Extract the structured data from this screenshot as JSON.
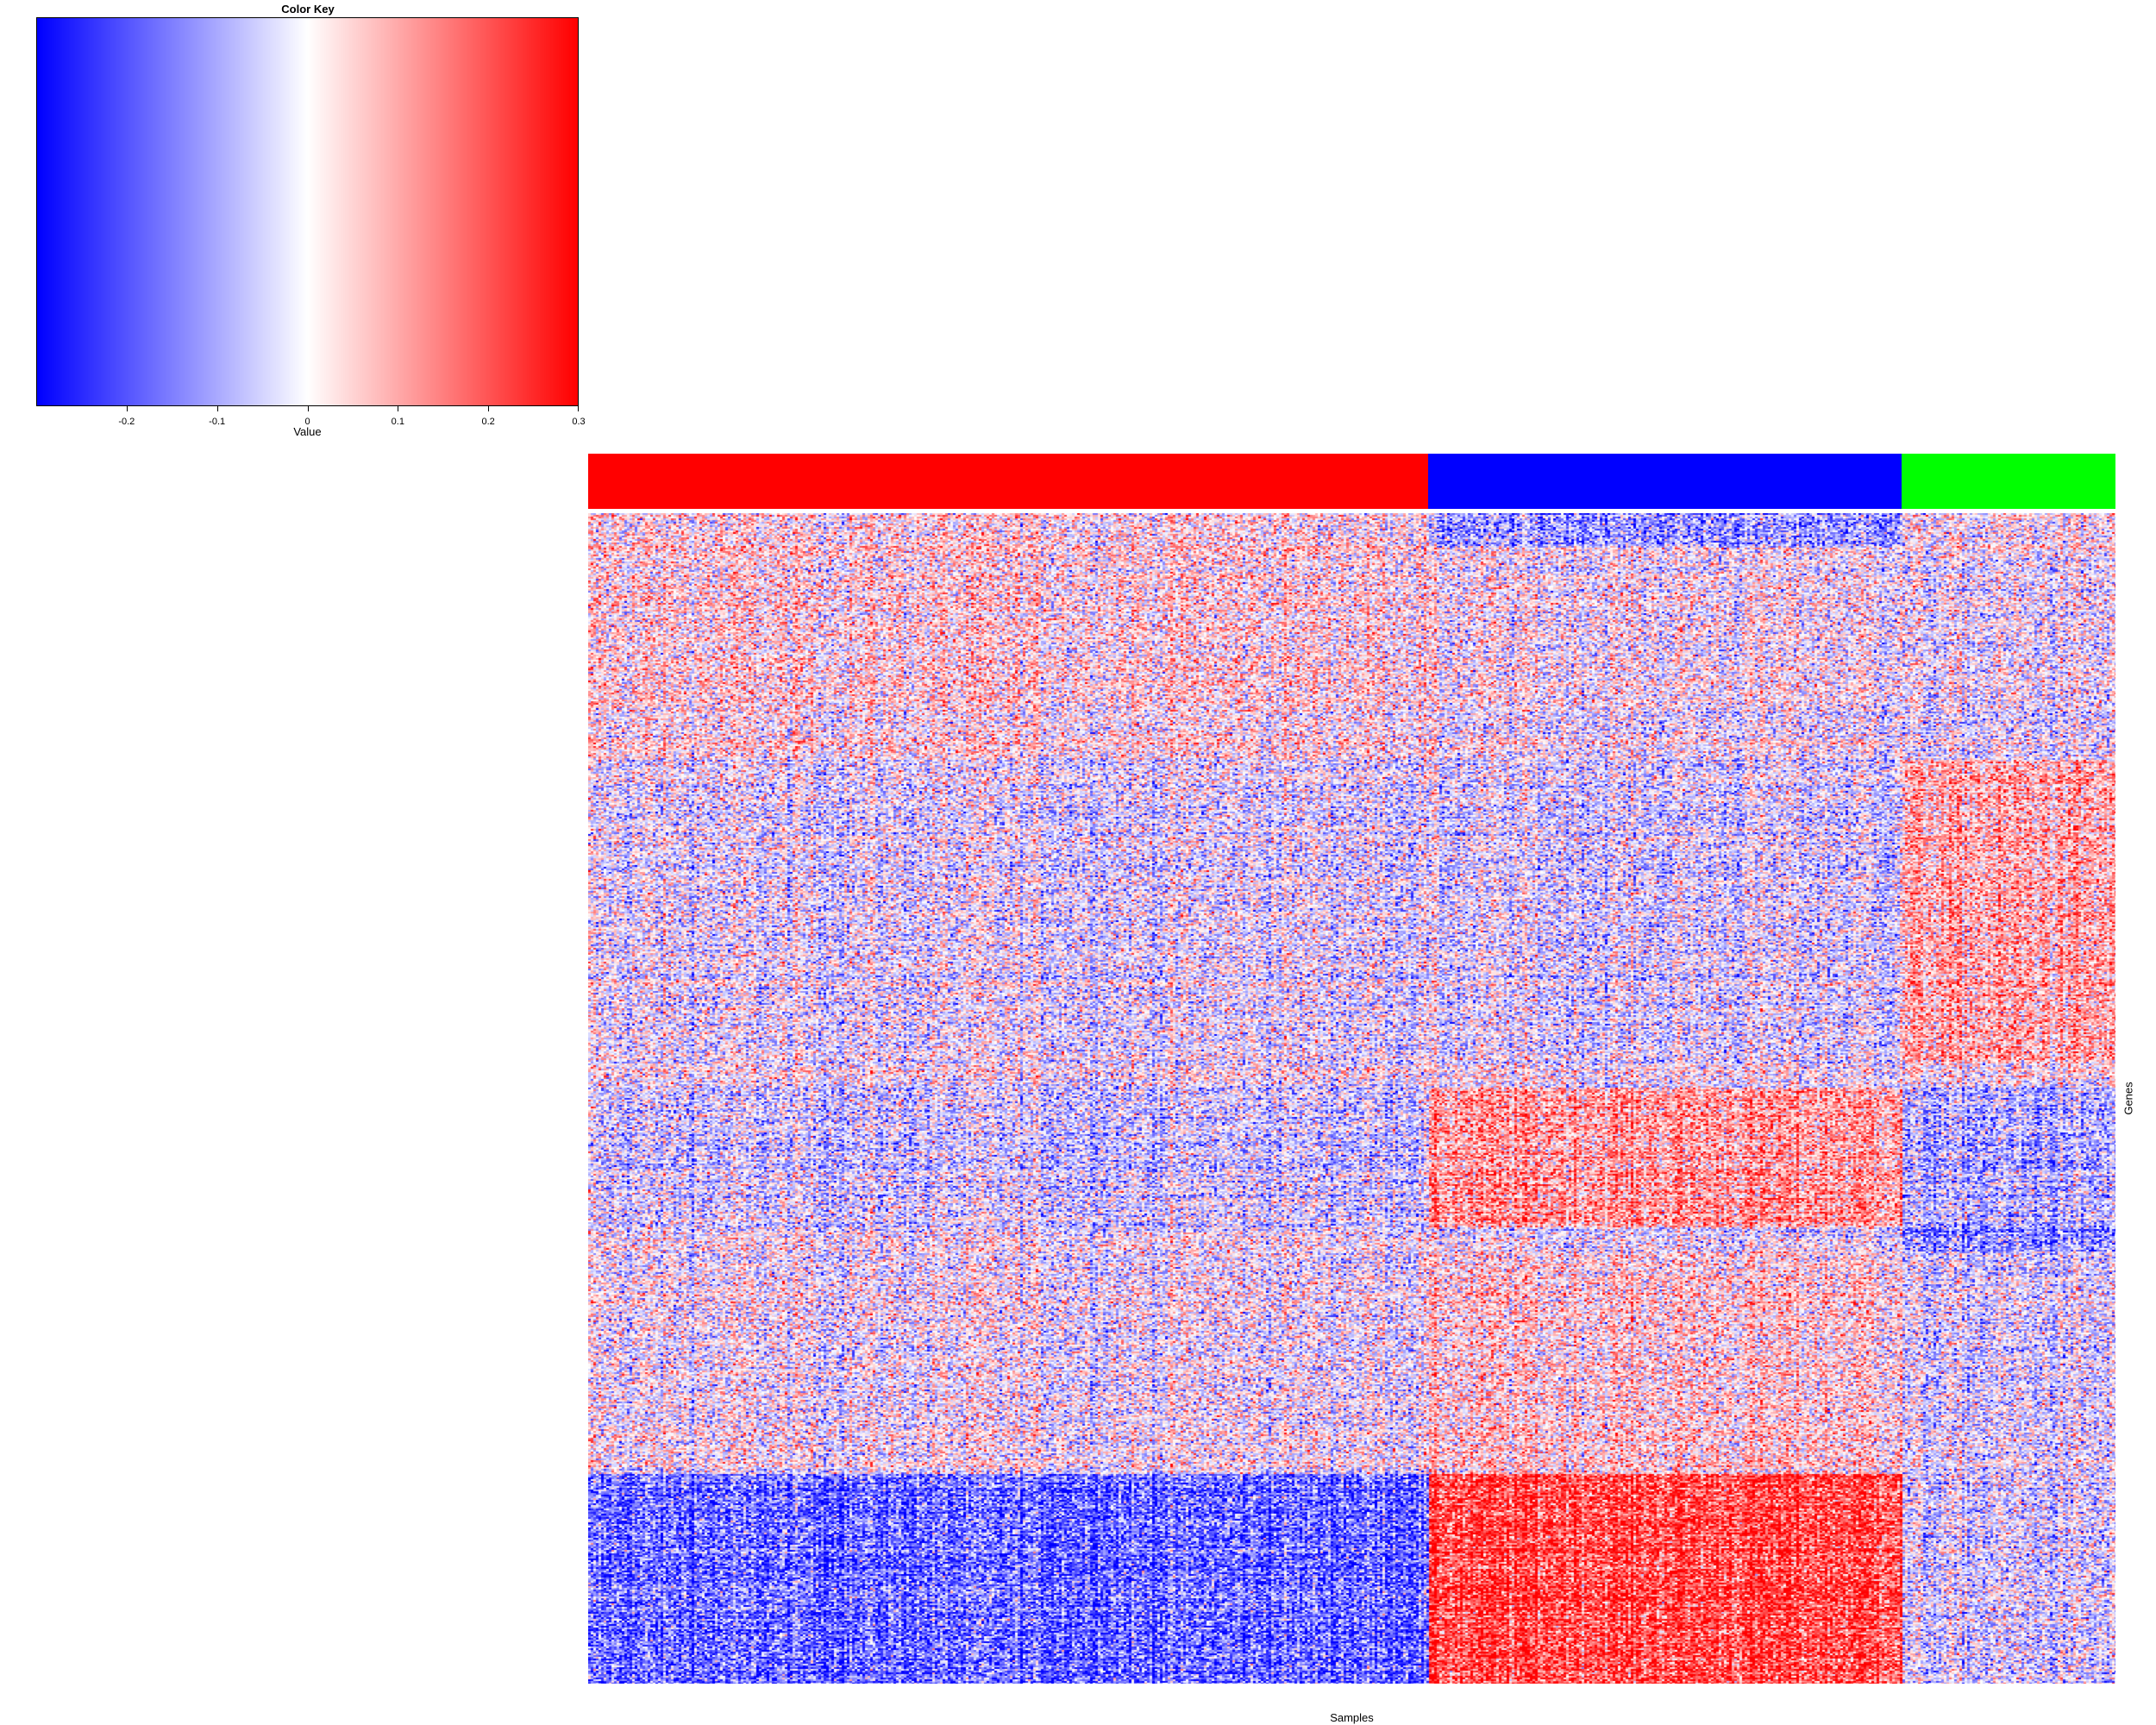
{
  "color_key": {
    "title": "Color Key",
    "xlabel": "Value",
    "range": [
      -0.3,
      0.3
    ],
    "ticks": [
      -0.2,
      -0.1,
      0,
      0.1,
      0.2,
      0.3
    ],
    "tick_labels": [
      "-0.2",
      "-0.1",
      "0",
      "0.1",
      "0.2",
      "0.3"
    ],
    "colors": {
      "low": "#0000ff",
      "mid": "#ffffff",
      "high": "#ff0000"
    }
  },
  "chart_data": {
    "type": "heatmap",
    "xlabel": "Samples",
    "ylabel": "Genes",
    "value_range": [
      -0.3,
      0.3
    ],
    "column_groups": [
      {
        "color": "#ff0000",
        "share": 0.55
      },
      {
        "color": "#0000ff",
        "share": 0.31
      },
      {
        "color": "#00ff00",
        "share": 0.14
      }
    ],
    "row_blocks": [
      {
        "share": 0.03,
        "means": [
          0.02,
          -0.12,
          0.0
        ]
      },
      {
        "share": 0.18,
        "means": [
          0.03,
          0.0,
          -0.02
        ]
      },
      {
        "share": 0.26,
        "means": [
          -0.02,
          -0.03,
          0.09
        ]
      },
      {
        "share": 0.02,
        "means": [
          0.0,
          0.0,
          0.0
        ]
      },
      {
        "share": 0.12,
        "means": [
          -0.04,
          0.12,
          -0.08
        ]
      },
      {
        "share": 0.02,
        "means": [
          0.0,
          -0.02,
          -0.14
        ]
      },
      {
        "share": 0.19,
        "means": [
          0.0,
          0.05,
          -0.03
        ]
      },
      {
        "share": 0.18,
        "means": [
          -0.17,
          0.22,
          -0.04
        ]
      }
    ]
  }
}
